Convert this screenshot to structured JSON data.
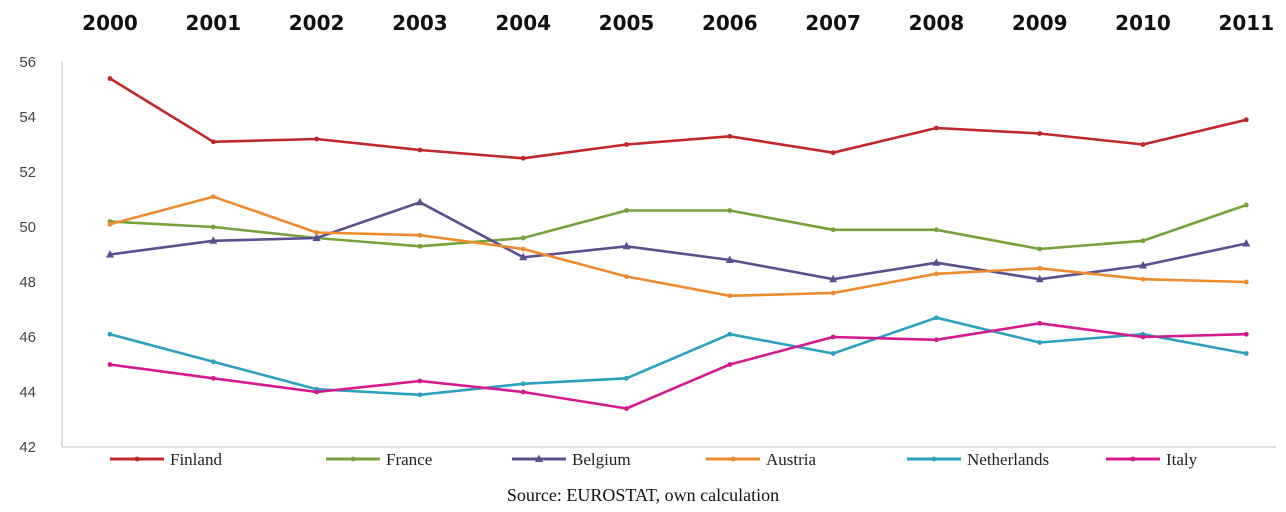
{
  "chart_data": {
    "type": "line",
    "x": [
      "2000",
      "2001",
      "2002",
      "2003",
      "2004",
      "2005",
      "2006",
      "2007",
      "2008",
      "2009",
      "2010",
      "2011"
    ],
    "y_ticks": [
      "42",
      "44",
      "46",
      "48",
      "50",
      "52",
      "54",
      "56"
    ],
    "ylim": [
      42,
      56
    ],
    "grid": false,
    "x_axis_position": "top",
    "legend_position": "bottom",
    "series": [
      {
        "name": "Finland",
        "color": "#c0282b",
        "marker": "dot",
        "values": [
          55.4,
          53.1,
          53.2,
          52.8,
          52.5,
          53.0,
          53.3,
          52.7,
          53.6,
          53.4,
          53.0,
          53.9
        ]
      },
      {
        "name": "France",
        "color": "#77a13a",
        "marker": "dot",
        "values": [
          50.2,
          50.0,
          49.6,
          49.3,
          49.6,
          50.6,
          50.6,
          49.9,
          49.9,
          49.2,
          49.5,
          50.8
        ]
      },
      {
        "name": "Belgium",
        "color": "#5d4f8e",
        "marker": "triangle",
        "values": [
          49.0,
          49.5,
          49.6,
          50.9,
          48.9,
          49.3,
          48.8,
          48.1,
          48.7,
          48.1,
          48.6,
          49.4
        ]
      },
      {
        "name": "Austria",
        "color": "#ef8a2e",
        "marker": "dot",
        "values": [
          50.1,
          51.1,
          49.8,
          49.7,
          49.2,
          48.2,
          47.5,
          47.6,
          48.3,
          48.5,
          48.1,
          48.0
        ]
      },
      {
        "name": "Netherlands",
        "color": "#2ca0bf",
        "marker": "dot",
        "values": [
          46.1,
          45.1,
          44.1,
          43.9,
          44.3,
          44.5,
          46.1,
          45.4,
          46.7,
          45.8,
          46.1,
          45.4
        ]
      },
      {
        "name": "Italy",
        "color": "#d6198f",
        "marker": "dot",
        "values": [
          45.0,
          44.5,
          44.0,
          44.4,
          44.0,
          43.4,
          45.0,
          46.0,
          45.9,
          46.5,
          46.0,
          46.1
        ]
      }
    ]
  },
  "source_text": "Source: EUROSTAT, own calculation"
}
